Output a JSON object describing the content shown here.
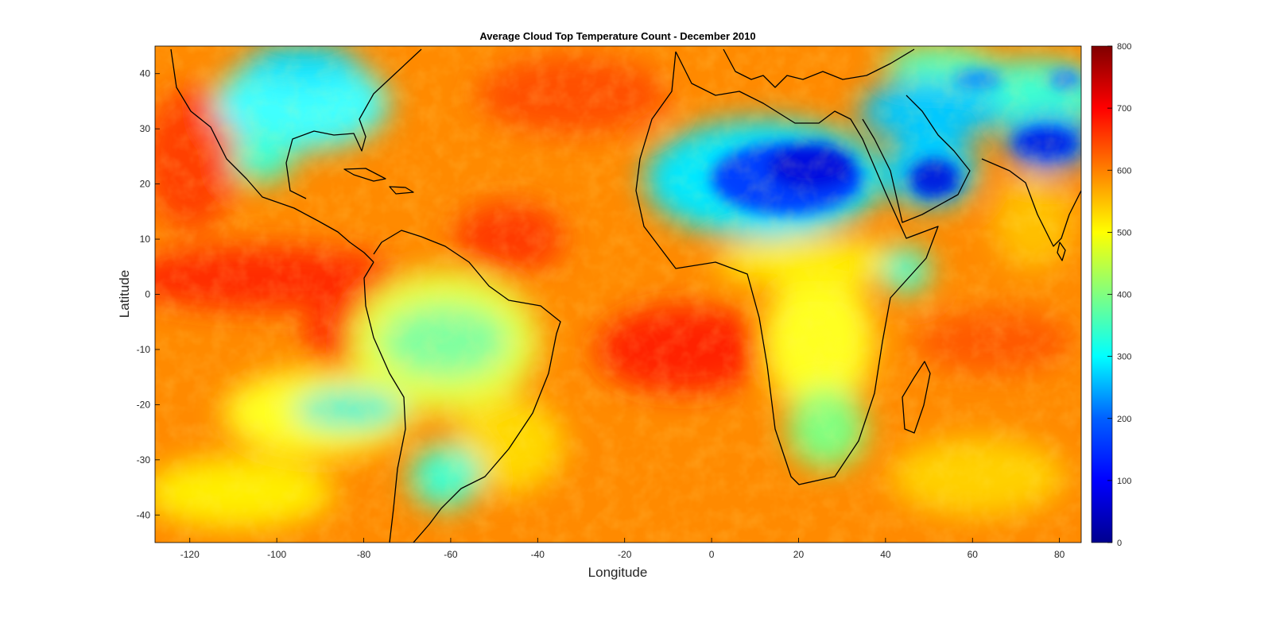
{
  "figure": {
    "title": "Average Cloud Top Temperature Count - December 2010",
    "xlabel": "Longitude",
    "ylabel": "Latitude"
  },
  "map_extent": {
    "lon": [
      -128,
      85
    ],
    "lat": [
      -45,
      45
    ]
  },
  "x_ticks": [
    -120,
    -100,
    -80,
    -60,
    -40,
    -20,
    0,
    20,
    40,
    60,
    80
  ],
  "y_ticks": [
    40,
    30,
    20,
    10,
    0,
    -10,
    -20,
    -30,
    -40
  ],
  "colorbar": {
    "colormap": "jet",
    "range": [
      0,
      800
    ],
    "ticks": [
      800,
      700,
      600,
      500,
      400,
      300,
      200,
      100,
      0
    ]
  },
  "colors": {
    "jet": [
      "#00008f",
      "#0000ff",
      "#0080ff",
      "#00ffff",
      "#80ff80",
      "#ffff00",
      "#ff8000",
      "#ff0000",
      "#800000"
    ]
  }
}
